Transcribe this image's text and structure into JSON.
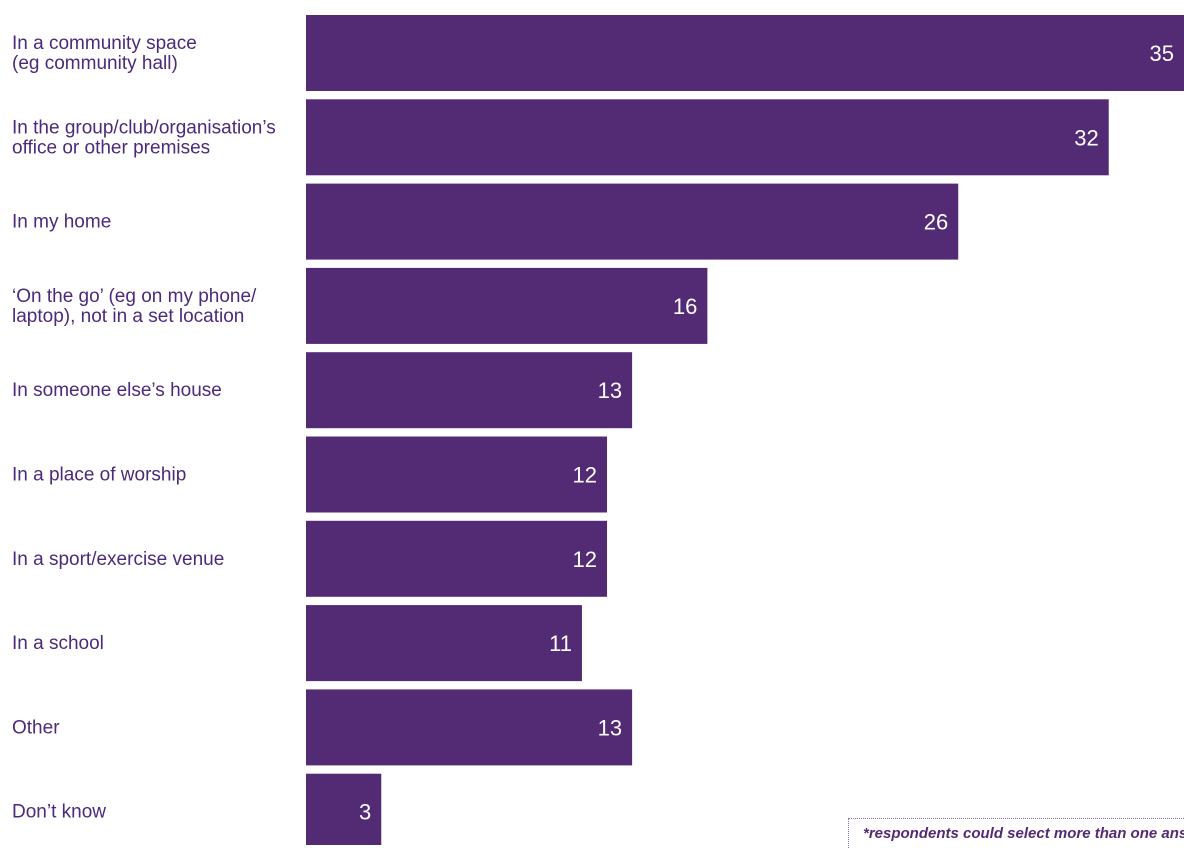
{
  "chart_data": {
    "type": "bar",
    "orientation": "horizontal",
    "categories": [
      [
        "In a community space",
        "(eg community hall)"
      ],
      [
        "In the group/club/organisation’s",
        "office or other premises"
      ],
      [
        "In my home"
      ],
      [
        "‘On the go’ (eg on my phone/",
        "laptop), not in a set location"
      ],
      [
        "In someone else’s house"
      ],
      [
        "In a place of worship"
      ],
      [
        "In a sport/exercise venue"
      ],
      [
        "In a school"
      ],
      [
        "Other"
      ],
      [
        "Don’t know"
      ]
    ],
    "values": [
      35,
      32,
      26,
      16,
      13,
      12,
      12,
      11,
      13,
      3
    ],
    "value_labels": [
      "35",
      "32",
      "26",
      "16",
      "13",
      "12",
      "12",
      "11",
      "13",
      "3"
    ],
    "xlim": [
      0,
      35
    ],
    "grid": false,
    "legend": "none",
    "colors": {
      "bar": "#532a74",
      "label": "#4b2a7b",
      "value_text": "#ffffff"
    }
  },
  "footnote": "*respondents could select more than one answer"
}
